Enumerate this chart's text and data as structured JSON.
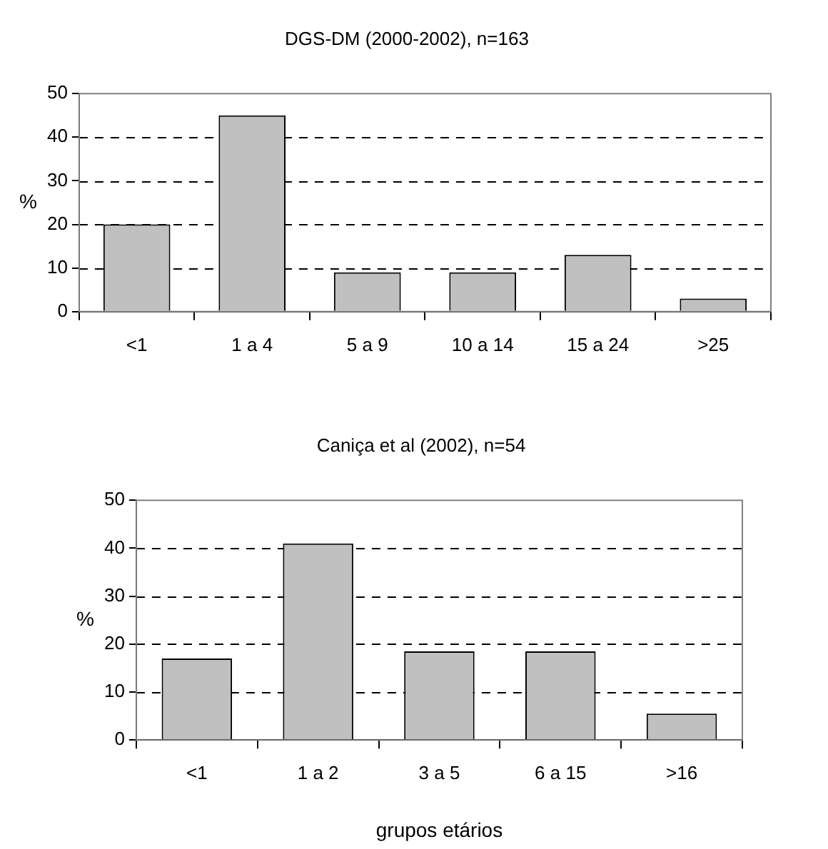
{
  "chart_data": [
    {
      "type": "bar",
      "title": "DGS-DM (2000-2002), n=163",
      "ylabel": "%",
      "categories": [
        "<1",
        "1 a 4",
        "5 a 9",
        "10 a 14",
        "15 a 24",
        ">25"
      ],
      "series": [
        {
          "color": "#c0c0c0",
          "values": [
            20,
            45,
            9,
            9,
            13,
            3
          ]
        }
      ],
      "ylim": [
        0,
        50
      ],
      "yticks": [
        0,
        10,
        20,
        30,
        40,
        50
      ],
      "grid": "y",
      "legend": false
    },
    {
      "type": "bar",
      "title": "Caniça et al (2002), n=54",
      "ylabel": "%",
      "xlabel": "grupos etários",
      "categories": [
        "<1",
        "1 a 2",
        "3 a 5",
        "6 a 15",
        ">16"
      ],
      "series": [
        {
          "color": "#c0c0c0",
          "values": [
            17,
            41,
            18.5,
            18.5,
            5.5
          ]
        }
      ],
      "ylim": [
        0,
        50
      ],
      "yticks": [
        0,
        10,
        20,
        30,
        40,
        50
      ],
      "grid": "y",
      "legend": false
    }
  ]
}
